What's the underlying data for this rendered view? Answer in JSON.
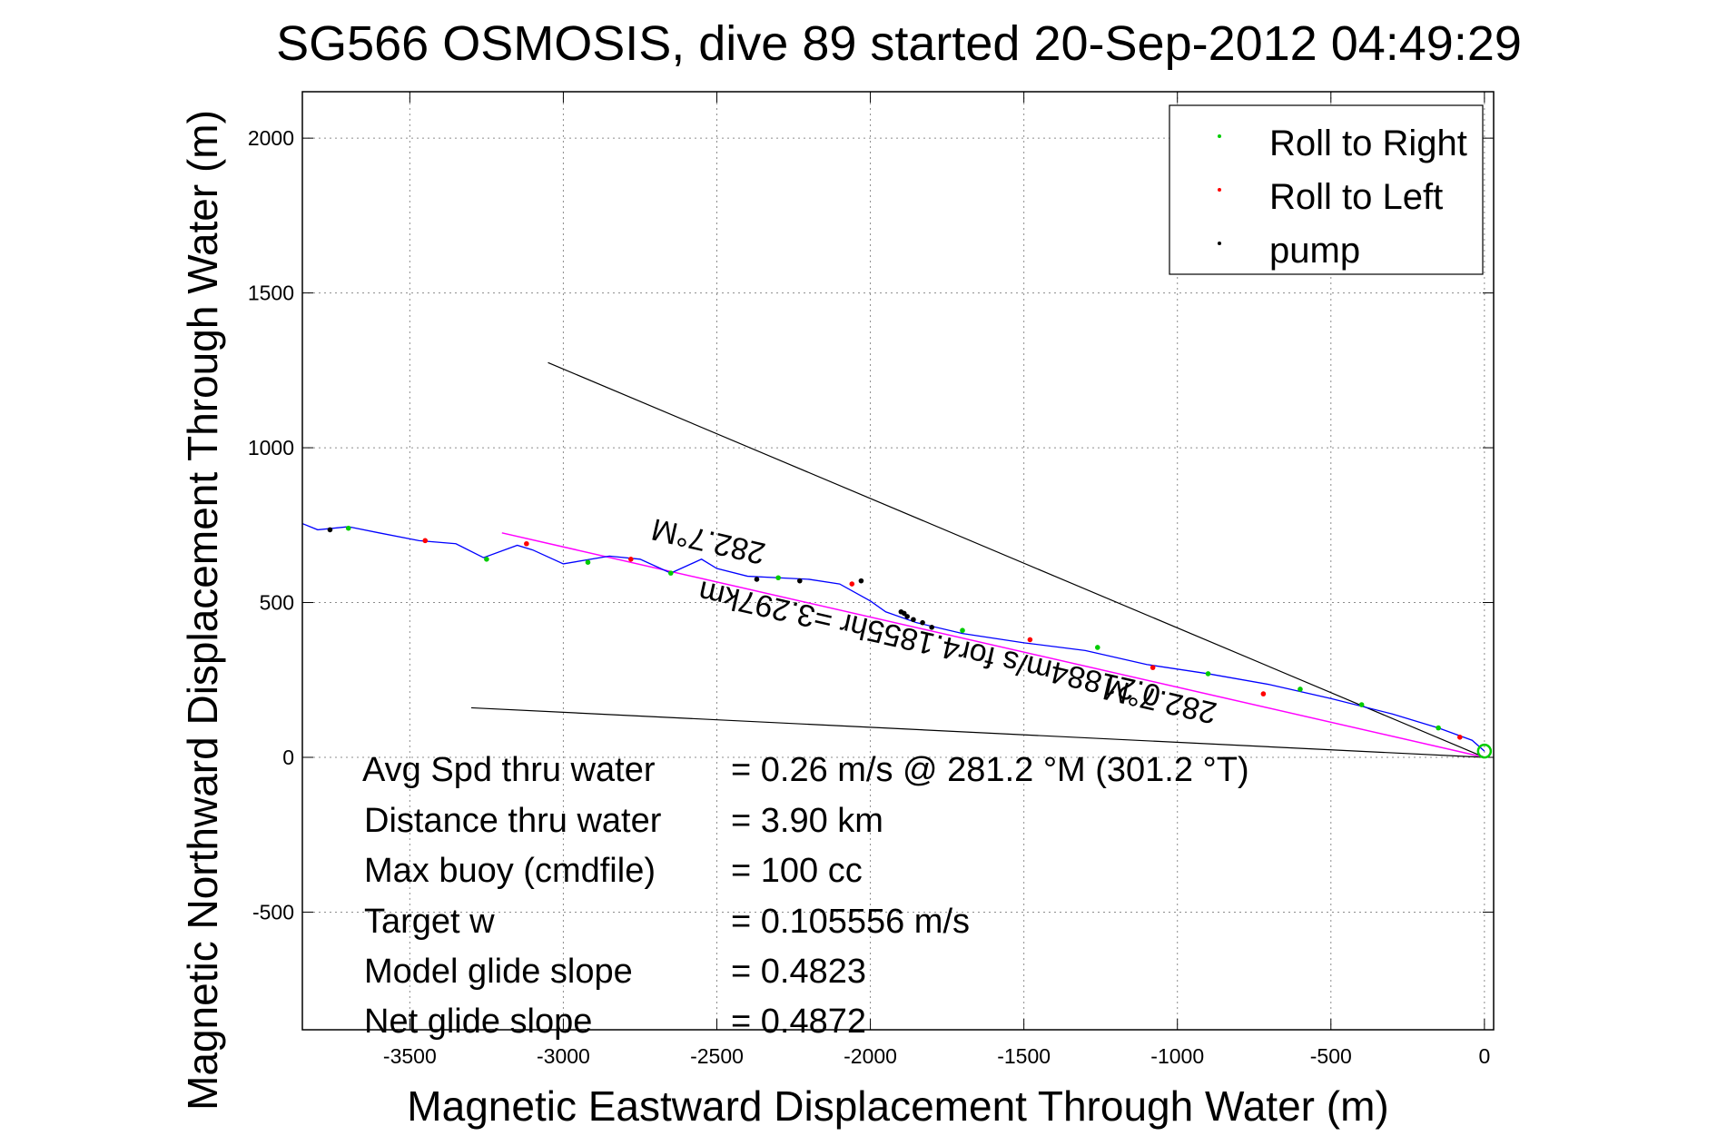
{
  "chart_data": {
    "type": "line",
    "title": "SG566 OSMOSIS, dive 89 started 20-Sep-2012 04:49:29",
    "xlabel": "Magnetic Eastward Displacement Through Water (m)",
    "ylabel": "Magnetic Northward Displacement Through Water (m)",
    "xlim": [
      -3850,
      30
    ],
    "ylim": [
      -880,
      2150
    ],
    "xticks": [
      -3500,
      -3000,
      -2500,
      -2000,
      -1500,
      -1000,
      -500,
      0
    ],
    "yticks": [
      -500,
      0,
      500,
      1000,
      1500,
      2000
    ],
    "grid": true,
    "legend_position": "top-right",
    "legend": [
      {
        "label": "Roll to Right",
        "color": "#00cc00"
      },
      {
        "label": "Roll to Left",
        "color": "#ff0000"
      },
      {
        "label": "pump",
        "color": "#000000"
      }
    ],
    "track": {
      "color": "#0000ff",
      "x": [
        0,
        -40,
        -150,
        -300,
        -500,
        -700,
        -900,
        -1100,
        -1300,
        -1500,
        -1700,
        -1850,
        -1950,
        -2000,
        -2100,
        -2200,
        -2300,
        -2400,
        -2500,
        -2550,
        -2650,
        -2750,
        -2850,
        -3000,
        -3100,
        -3150,
        -3260,
        -3350,
        -3470,
        -3600,
        -3700,
        -3800,
        -3850
      ],
      "y": [
        20,
        55,
        95,
        140,
        190,
        235,
        270,
        300,
        345,
        370,
        400,
        435,
        470,
        505,
        560,
        575,
        580,
        585,
        610,
        640,
        595,
        640,
        650,
        625,
        670,
        685,
        645,
        690,
        700,
        725,
        745,
        735,
        755
      ]
    },
    "roll_right_points": {
      "x": [
        -150,
        -400,
        -600,
        -900,
        -1260,
        -1700,
        -2300,
        -2650,
        -2920,
        -3250,
        -3700
      ],
      "y": [
        95,
        170,
        220,
        270,
        355,
        410,
        580,
        595,
        630,
        640,
        740
      ]
    },
    "roll_left_points": {
      "x": [
        -80,
        -720,
        -1080,
        -1480,
        -2060,
        -2780,
        -3120,
        -3450
      ],
      "y": [
        65,
        205,
        290,
        380,
        560,
        640,
        690,
        700
      ]
    },
    "pump_points": {
      "x": [
        -1900,
        -1890,
        -1880,
        -1860,
        -1830,
        -1800,
        -2030,
        -2230,
        -2370,
        -3760
      ],
      "y": [
        470,
        465,
        455,
        445,
        435,
        420,
        570,
        570,
        575,
        735
      ]
    },
    "heading_line": {
      "color": "#ff00ff",
      "x": [
        0,
        -3200
      ],
      "y": [
        0,
        725
      ],
      "label": "0.21884m/s for4.1855hr =3.297km"
    },
    "bounding_lines": {
      "color": "#000000",
      "upper": {
        "x": [
          0,
          -3050
        ],
        "y": [
          0,
          1275
        ]
      },
      "lower": {
        "x": [
          0,
          -3300
        ],
        "y": [
          0,
          160
        ]
      }
    },
    "heading_labels": [
      {
        "text": "282.7°M",
        "x": -2520,
        "y": 730
      },
      {
        "text": "282.7°M",
        "x": -1050,
        "y": 215
      }
    ],
    "start_marker": {
      "x": 0,
      "y": 20,
      "color": "#00cc00"
    },
    "annotations": [
      {
        "label": "Avg Spd thru water",
        "value": "=  0.26 m/s @ 281.2 °M (301.2 °T)"
      },
      {
        "label": "Distance thru water",
        "value": "=  3.90 km"
      },
      {
        "label": "Max buoy (cmdfile)",
        "value": "= 100 cc"
      },
      {
        "label": "Target w",
        "value": "= 0.105556 m/s"
      },
      {
        "label": "Model glide slope",
        "value": "= 0.4823"
      },
      {
        "label": "Net glide slope",
        "value": "= 0.4872"
      }
    ]
  }
}
